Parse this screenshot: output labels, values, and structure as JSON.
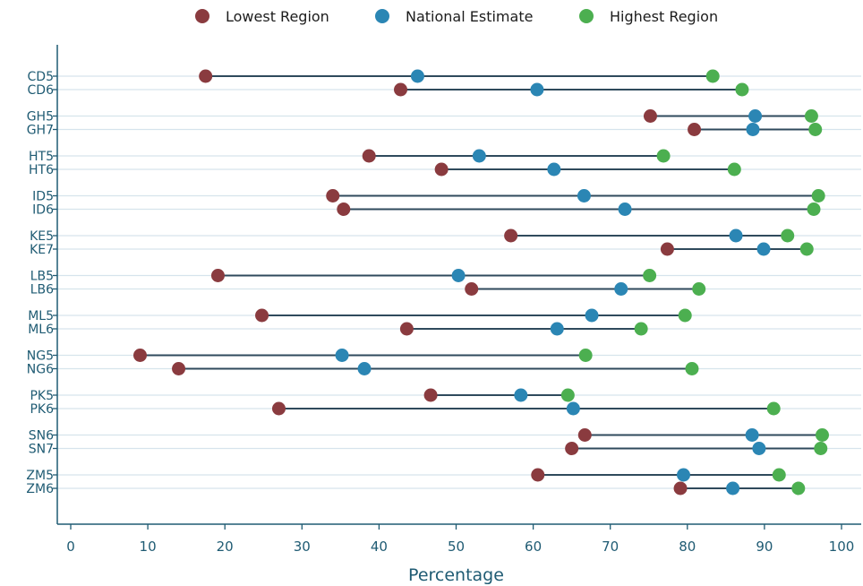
{
  "chart_data": {
    "type": "dot-range",
    "xlabel": "Percentage",
    "xlim": [
      0,
      100
    ],
    "xticks": [
      0,
      10,
      20,
      30,
      40,
      50,
      60,
      70,
      80,
      90,
      100
    ],
    "grid": true,
    "legend_position": "top",
    "series": [
      {
        "name": "Lowest Region",
        "color": "#8a3b3f",
        "values": [
          17.5,
          42.8,
          75.2,
          80.9,
          38.7,
          48.1,
          34.0,
          35.4,
          57.1,
          77.4,
          19.1,
          52.0,
          24.8,
          43.6,
          9.0,
          14.0,
          46.7,
          27.0,
          66.7,
          65.0,
          60.6,
          79.1
        ]
      },
      {
        "name": "National Estimate",
        "color": "#2b86b4",
        "values": [
          45.0,
          60.5,
          88.8,
          88.5,
          53.0,
          62.7,
          66.6,
          71.9,
          86.3,
          89.9,
          50.3,
          71.4,
          67.6,
          63.1,
          35.2,
          38.1,
          58.4,
          65.2,
          88.4,
          89.3,
          79.5,
          85.9
        ]
      },
      {
        "name": "Highest Region",
        "color": "#4caf50",
        "values": [
          83.3,
          87.1,
          96.1,
          96.6,
          76.9,
          86.1,
          97.0,
          96.4,
          93.0,
          95.5,
          75.1,
          81.5,
          79.7,
          74.0,
          66.8,
          80.6,
          64.5,
          91.2,
          97.5,
          97.3,
          91.9,
          94.4
        ]
      }
    ],
    "categories": [
      "CD5",
      "CD6",
      "GH5",
      "GH7",
      "HT5",
      "HT6",
      "ID5",
      "ID6",
      "KE5",
      "KE7",
      "LB5",
      "LB6",
      "ML5",
      "ML6",
      "NG5",
      "NG6",
      "PK5",
      "PK6",
      "SN6",
      "SN7",
      "ZM5",
      "ZM6"
    ]
  },
  "colors": {
    "axis": "#1f5b73",
    "grid": "#d6e4ec",
    "connector": "#2f4a5c"
  }
}
